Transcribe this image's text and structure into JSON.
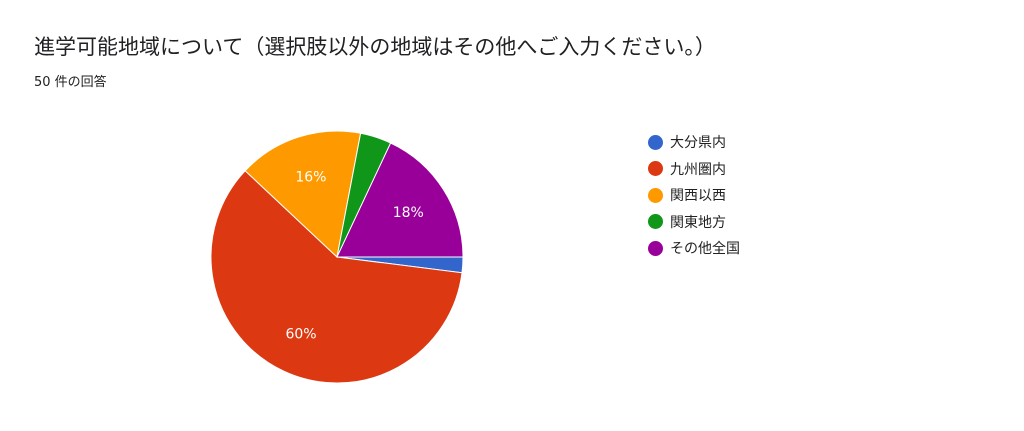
{
  "title": "進学可能地域について（選択肢以外の地域はその他へご入力ください。）",
  "subtitle": "50 件の回答",
  "chart_data": {
    "type": "pie",
    "categories": [
      "大分県内",
      "九州圏内",
      "関西以西",
      "関東地方",
      "その他全国"
    ],
    "values": [
      2,
      60,
      16,
      4,
      18
    ],
    "value_unit": "%",
    "labels_shown": [
      "",
      "60%",
      "16%",
      "",
      "18%"
    ],
    "colors": [
      "#3366cc",
      "#dc3912",
      "#ff9900",
      "#109618",
      "#990099"
    ],
    "legend_position": "right",
    "start_angle_deg": 90,
    "direction": "clockwise"
  }
}
